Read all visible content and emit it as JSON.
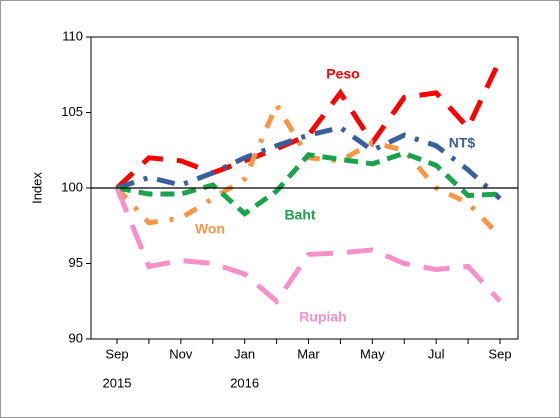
{
  "chart_data": {
    "type": "line",
    "y_axis_label": "Index",
    "categories": [
      "Sep",
      null,
      "Nov",
      null,
      "Jan",
      null,
      "Mar",
      null,
      "May",
      null,
      "Jul",
      null,
      "Sep"
    ],
    "years": [
      "2015",
      null,
      null,
      null,
      "2016",
      null,
      null,
      null,
      null,
      null,
      null,
      null,
      null
    ],
    "ylim": [
      90,
      110
    ],
    "yticks": [
      90,
      95,
      100,
      105,
      110
    ],
    "hline": 100,
    "grid": false,
    "series": [
      {
        "name": "Peso",
        "color": "#ff0000",
        "values": [
          100,
          102,
          101.8,
          101,
          101.8,
          102.6,
          103.5,
          106.3,
          103,
          106,
          106.3,
          104,
          108.5
        ]
      },
      {
        "name": "NT$",
        "color": "#3a5f9f",
        "values": [
          100,
          100.7,
          100.2,
          101,
          102,
          102.8,
          103.5,
          104,
          102.5,
          103.5,
          102.8,
          101.2,
          99.3
        ]
      },
      {
        "name": "Won",
        "color": "#f79646",
        "values": [
          100,
          97.7,
          98,
          99.3,
          100.6,
          105.5,
          102,
          101.8,
          103,
          102.5,
          100,
          99,
          96.8
        ]
      },
      {
        "name": "Baht",
        "color": "#1aa34a",
        "values": [
          100,
          99.6,
          99.6,
          100.2,
          98.3,
          99.8,
          102.2,
          101.9,
          101.6,
          102.3,
          101.5,
          99.5,
          99.6
        ]
      },
      {
        "name": "Rupiah",
        "color": "#f78fc8",
        "values": [
          100,
          94.8,
          95.2,
          95,
          94.3,
          92.5,
          95.6,
          95.7,
          95.9,
          95,
          94.6,
          94.8,
          92.5
        ]
      }
    ]
  }
}
